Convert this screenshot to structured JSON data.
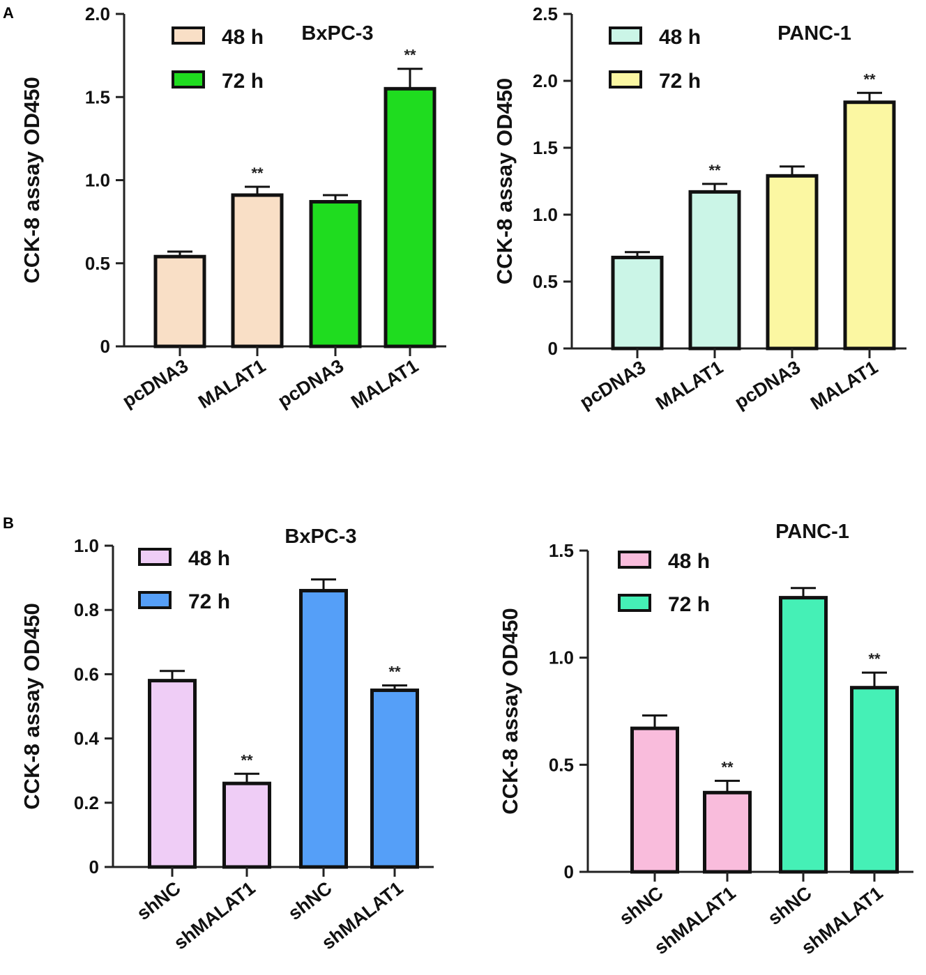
{
  "panel_labels": {
    "a": "A",
    "b": "B"
  },
  "chart_data": [
    {
      "type": "bar",
      "panel": "A",
      "title": "BxPC-3",
      "xlabel": "",
      "ylabel": "CCK-8 assay OD450",
      "ylim": [
        0,
        2.0
      ],
      "yticks": [
        0,
        0.5,
        1.0,
        1.5,
        2.0
      ],
      "ytick_labels": [
        "0",
        "0.5",
        "1.0",
        "1.5",
        "2.0"
      ],
      "categories": [
        "pcDNA3",
        "MALAT1",
        "pcDNA3",
        "MALAT1"
      ],
      "values": [
        0.54,
        0.91,
        0.87,
        1.55
      ],
      "errors": [
        0.03,
        0.05,
        0.04,
        0.12
      ],
      "significance": [
        "",
        "**",
        "",
        "**"
      ],
      "groups": [
        0,
        0,
        1,
        1
      ],
      "legend": [
        {
          "label": "48 h",
          "color": "#f9dfc6"
        },
        {
          "label": "72 h",
          "color": "#1fdc1f"
        }
      ]
    },
    {
      "type": "bar",
      "panel": "A",
      "title": "PANC-1",
      "xlabel": "",
      "ylabel": "CCK-8 assay OD450",
      "ylim": [
        0,
        2.5
      ],
      "yticks": [
        0,
        0.5,
        1.0,
        1.5,
        2.0,
        2.5
      ],
      "ytick_labels": [
        "0",
        "0.5",
        "1.0",
        "1.5",
        "2.0",
        "2.5"
      ],
      "categories": [
        "pcDNA3",
        "MALAT1",
        "pcDNA3",
        "MALAT1"
      ],
      "values": [
        0.68,
        1.17,
        1.29,
        1.84
      ],
      "errors": [
        0.04,
        0.06,
        0.07,
        0.07
      ],
      "significance": [
        "",
        "**",
        "",
        "**"
      ],
      "groups": [
        0,
        0,
        1,
        1
      ],
      "legend": [
        {
          "label": "48 h",
          "color": "#cbf5e7"
        },
        {
          "label": "72 h",
          "color": "#fbf7a2"
        }
      ]
    },
    {
      "type": "bar",
      "panel": "B",
      "title": "BxPC-3",
      "xlabel": "",
      "ylabel": "CCK-8 assay OD450",
      "ylim": [
        0,
        1.0
      ],
      "yticks": [
        0,
        0.2,
        0.4,
        0.6,
        0.8,
        1.0
      ],
      "ytick_labels": [
        "0",
        "0.2",
        "0.4",
        "0.6",
        "0.8",
        "1.0"
      ],
      "categories": [
        "shNC",
        "shMALAT1",
        "shNC",
        "shMALAT1"
      ],
      "values": [
        0.58,
        0.26,
        0.86,
        0.55
      ],
      "errors": [
        0.03,
        0.03,
        0.035,
        0.015
      ],
      "significance": [
        "",
        "**",
        "",
        "**"
      ],
      "groups": [
        0,
        0,
        1,
        1
      ],
      "legend": [
        {
          "label": "48 h",
          "color": "#efcdf6"
        },
        {
          "label": "72 h",
          "color": "#559ff8"
        }
      ]
    },
    {
      "type": "bar",
      "panel": "B",
      "title": "PANC-1",
      "xlabel": "",
      "ylabel": "CCK-8 assay OD450",
      "ylim": [
        0,
        1.5
      ],
      "yticks": [
        0,
        0.5,
        1.0,
        1.5
      ],
      "ytick_labels": [
        "0",
        "0.5",
        "1.0",
        "1.5"
      ],
      "categories": [
        "shNC",
        "shMALAT1",
        "shNC",
        "shMALAT1"
      ],
      "values": [
        0.67,
        0.37,
        1.28,
        0.86
      ],
      "errors": [
        0.06,
        0.055,
        0.045,
        0.07
      ],
      "significance": [
        "",
        "**",
        "",
        "**"
      ],
      "groups": [
        0,
        0,
        1,
        1
      ],
      "legend": [
        {
          "label": "48 h",
          "color": "#f9bcdc"
        },
        {
          "label": "72 h",
          "color": "#45f0b6"
        }
      ]
    }
  ]
}
